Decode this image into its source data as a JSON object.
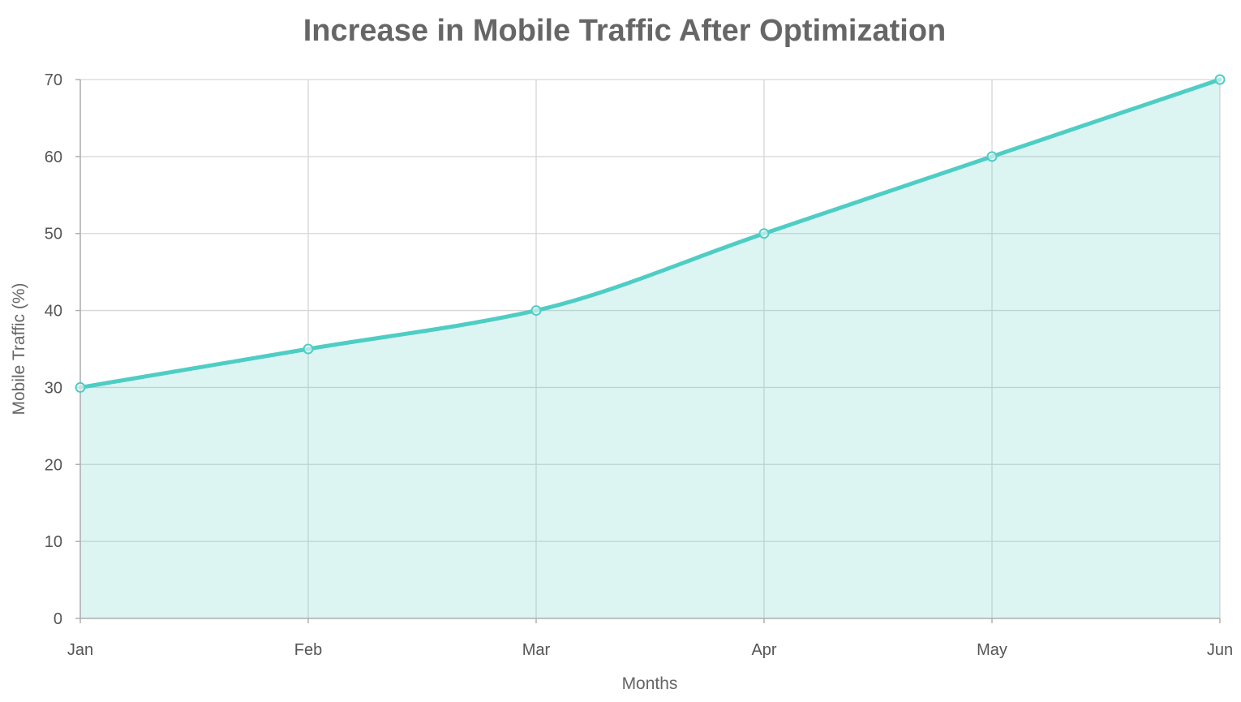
{
  "chart_data": {
    "type": "area",
    "title": "Increase in Mobile Traffic After Optimization",
    "xlabel": "Months",
    "ylabel": "Mobile Traffic (%)",
    "categories": [
      "Jan",
      "Feb",
      "Mar",
      "Apr",
      "May",
      "Jun"
    ],
    "series": [
      {
        "values": [
          30,
          35,
          40,
          50,
          60,
          70
        ]
      }
    ],
    "ylim": [
      0,
      70
    ],
    "yticks": [
      0,
      10,
      20,
      30,
      40,
      50,
      60,
      70
    ],
    "grid": true,
    "legend": "none",
    "colors": {
      "line": "#4ecdc4",
      "fill": "#4ecdc4",
      "text": "#666666",
      "grid": "#d6d6d6"
    }
  }
}
